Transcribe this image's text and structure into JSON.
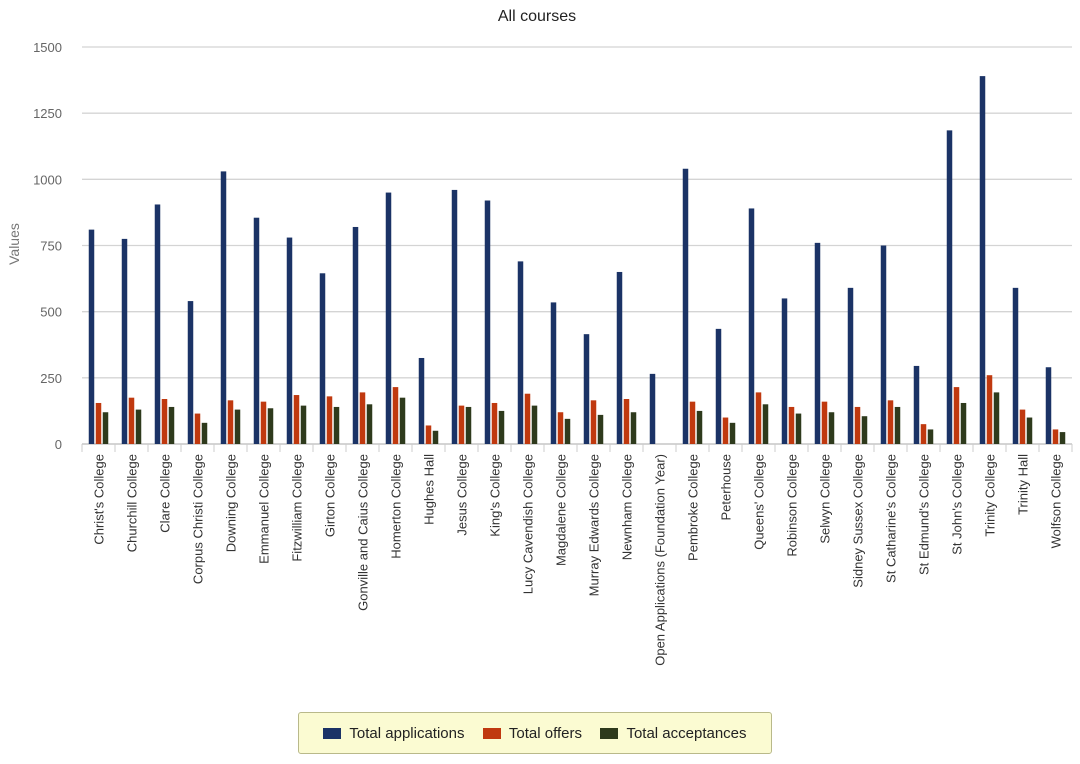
{
  "chart_data": {
    "type": "bar",
    "title": "All courses",
    "ylabel": "Values",
    "xlabel": "",
    "ylim": [
      0,
      1500
    ],
    "yticks": [
      0,
      250,
      500,
      750,
      1000,
      1250,
      1500
    ],
    "grid": true,
    "legend_position": "bottom",
    "categories": [
      "Christ's College",
      "Churchill College",
      "Clare College",
      "Corpus Christi College",
      "Downing College",
      "Emmanuel College",
      "Fitzwilliam College",
      "Girton College",
      "Gonville and Caius College",
      "Homerton College",
      "Hughes Hall",
      "Jesus College",
      "King's College",
      "Lucy Cavendish College",
      "Magdalene College",
      "Murray Edwards College",
      "Newnham College",
      "Open Applications (Foundation Year)",
      "Pembroke College",
      "Peterhouse",
      "Queens' College",
      "Robinson College",
      "Selwyn College",
      "Sidney Sussex College",
      "St Catharine's College",
      "St Edmund's College",
      "St John's College",
      "Trinity College",
      "Trinity Hall",
      "Wolfson College"
    ],
    "series": [
      {
        "name": "Total applications",
        "color": "#1b3366",
        "values": [
          810,
          775,
          905,
          540,
          1030,
          855,
          780,
          645,
          820,
          950,
          325,
          960,
          920,
          690,
          535,
          415,
          650,
          265,
          1040,
          435,
          890,
          550,
          760,
          590,
          750,
          295,
          1185,
          1390,
          590,
          290
        ]
      },
      {
        "name": "Total offers",
        "color": "#c0390f",
        "values": [
          155,
          175,
          170,
          115,
          165,
          160,
          185,
          180,
          195,
          215,
          70,
          145,
          155,
          190,
          120,
          165,
          170,
          0,
          160,
          100,
          195,
          140,
          160,
          140,
          165,
          75,
          215,
          260,
          130,
          55
        ]
      },
      {
        "name": "Total acceptances",
        "color": "#2e3a1c",
        "values": [
          120,
          130,
          140,
          80,
          130,
          135,
          145,
          140,
          150,
          175,
          50,
          140,
          125,
          145,
          95,
          110,
          120,
          0,
          125,
          80,
          150,
          115,
          120,
          105,
          140,
          55,
          155,
          195,
          100,
          45
        ]
      }
    ]
  }
}
